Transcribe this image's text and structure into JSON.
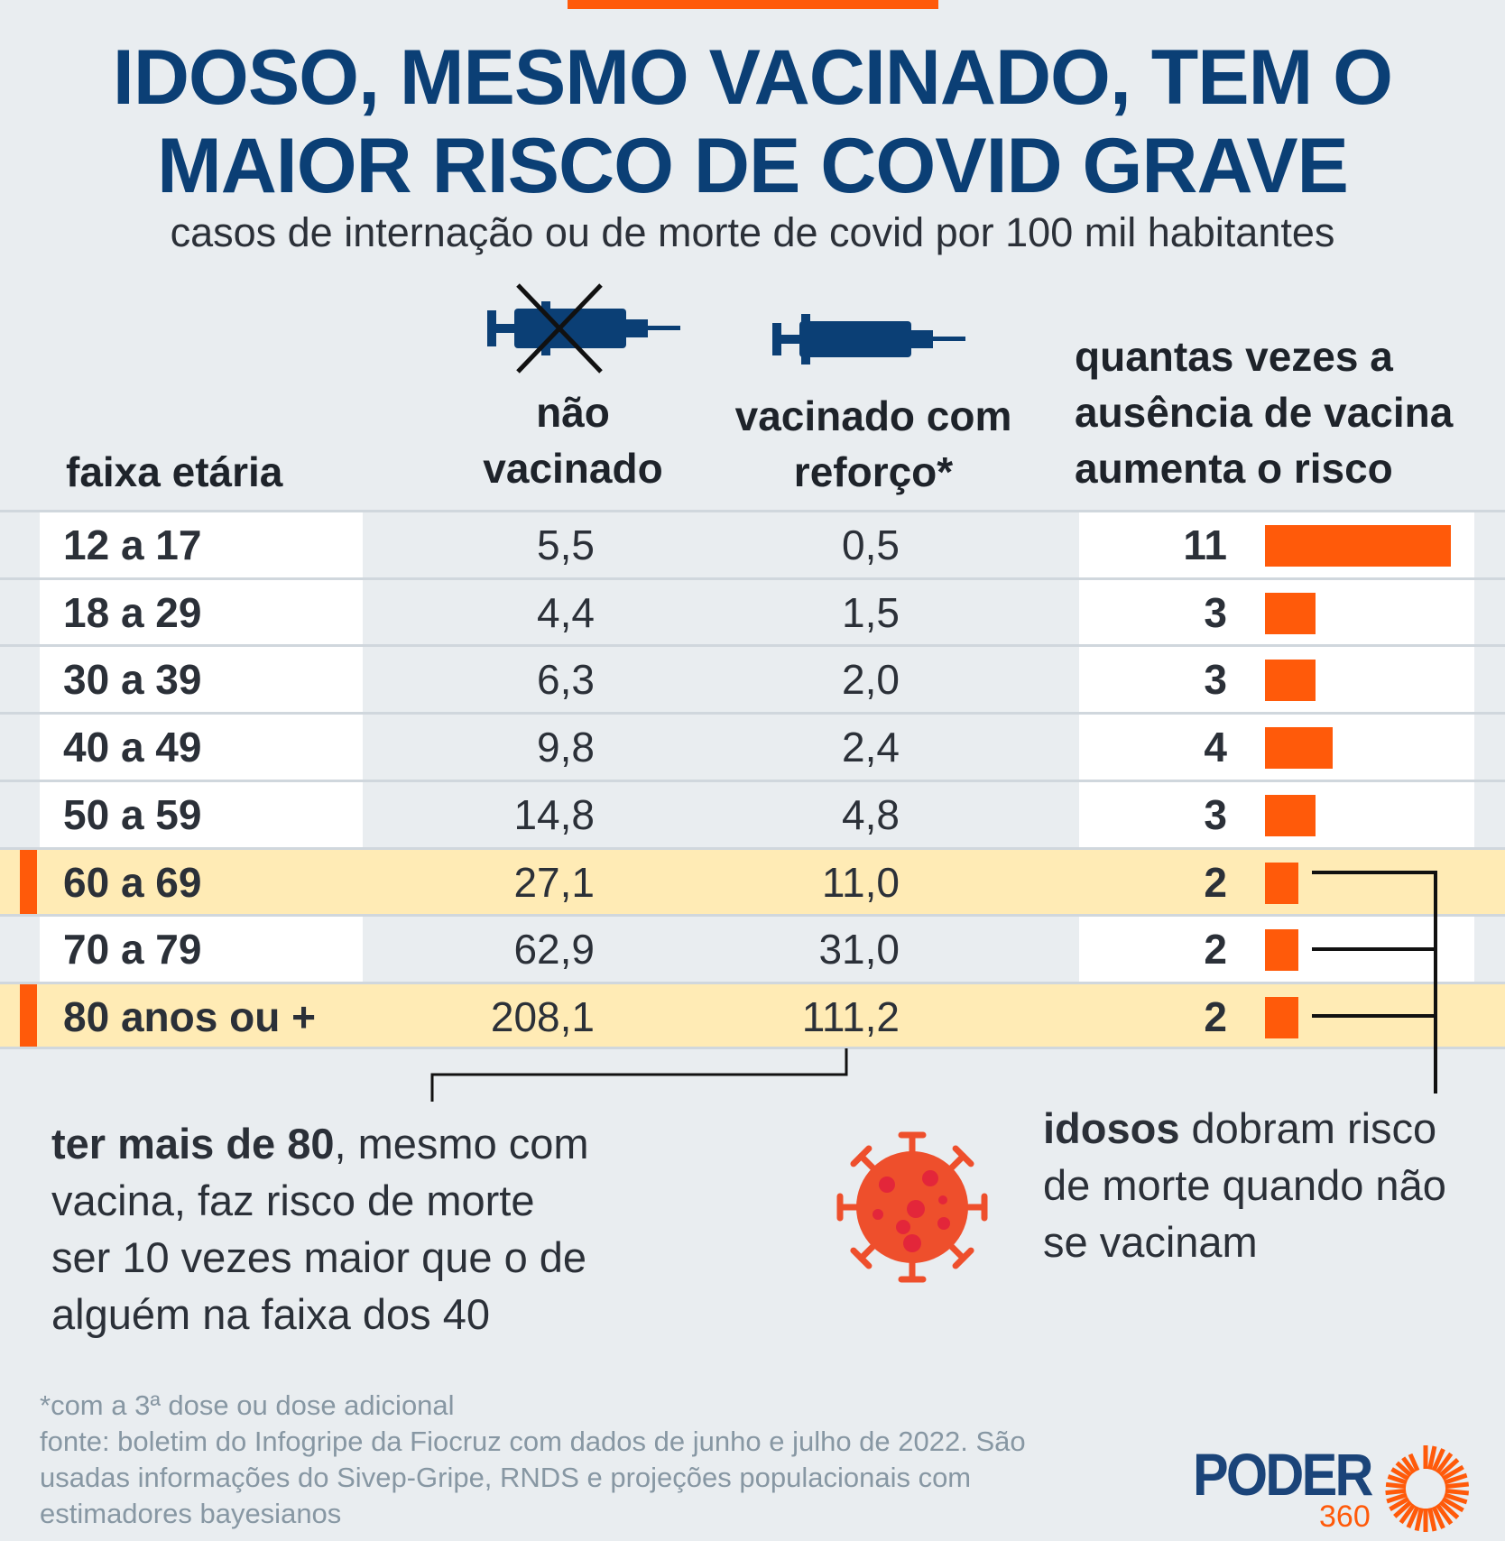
{
  "title": {
    "line1": "IDOSO, MESMO VACINADO, TEM O",
    "line2": "MAIOR RISCO DE COVID GRAVE"
  },
  "subtitle": "casos de internação ou de morte de covid por 100 mil habitantes",
  "headers": {
    "age": "faixa etária",
    "unvax1": "não",
    "unvax2": "vacinado",
    "vax1": "vacinado com",
    "vax2": "reforço*",
    "ratio1": "quantas vezes a",
    "ratio2": "ausência de vacina",
    "ratio3": "aumenta o risco"
  },
  "rows": [
    {
      "age": "12 a 17",
      "unvax": "5,5",
      "vax": "0,5",
      "ratio": 11
    },
    {
      "age": "18 a 29",
      "unvax": "4,4",
      "vax": "1,5",
      "ratio": 3
    },
    {
      "age": "30 a 39",
      "unvax": "6,3",
      "vax": "2,0",
      "ratio": 3
    },
    {
      "age": "40 a 49",
      "unvax": "9,8",
      "vax": "2,4",
      "ratio": 4
    },
    {
      "age": "50 a 59",
      "unvax": "14,8",
      "vax": "4,8",
      "ratio": 3
    },
    {
      "age": "60 a 69",
      "unvax": "27,1",
      "vax": "11,0",
      "ratio": 2,
      "highlight": true
    },
    {
      "age": "70 a 79",
      "unvax": "62,9",
      "vax": "31,0",
      "ratio": 2
    },
    {
      "age": "80 anos ou +",
      "unvax": "208,1",
      "vax": "111,2",
      "ratio": 2,
      "highlight": true
    }
  ],
  "note_left": {
    "bold": "ter mais de 80",
    "rest1": ", mesmo com",
    "line2": "vacina, faz risco de morte",
    "line3": "ser 10 vezes maior que o de",
    "line4": "alguém na faixa dos 40"
  },
  "note_right": {
    "bold": "idosos",
    "rest1": " dobram risco",
    "line2": "de morte quando não",
    "line3": "se vacinam"
  },
  "footnote": {
    "line1": "*com a 3ª dose ou dose adicional",
    "line2": "fonte: boletim do Infogripe da Fiocruz com dados de junho e julho de 2022. São",
    "line3": "usadas informações do Sivep-Gripe, RNDS e projeções populacionais com",
    "line4": "estimadores bayesianos"
  },
  "logo": {
    "word": "PODER",
    "num": "360"
  },
  "colors": {
    "accent": "#ff5a0a",
    "title": "#0b3f75",
    "highlight": "#ffebb5"
  }
}
